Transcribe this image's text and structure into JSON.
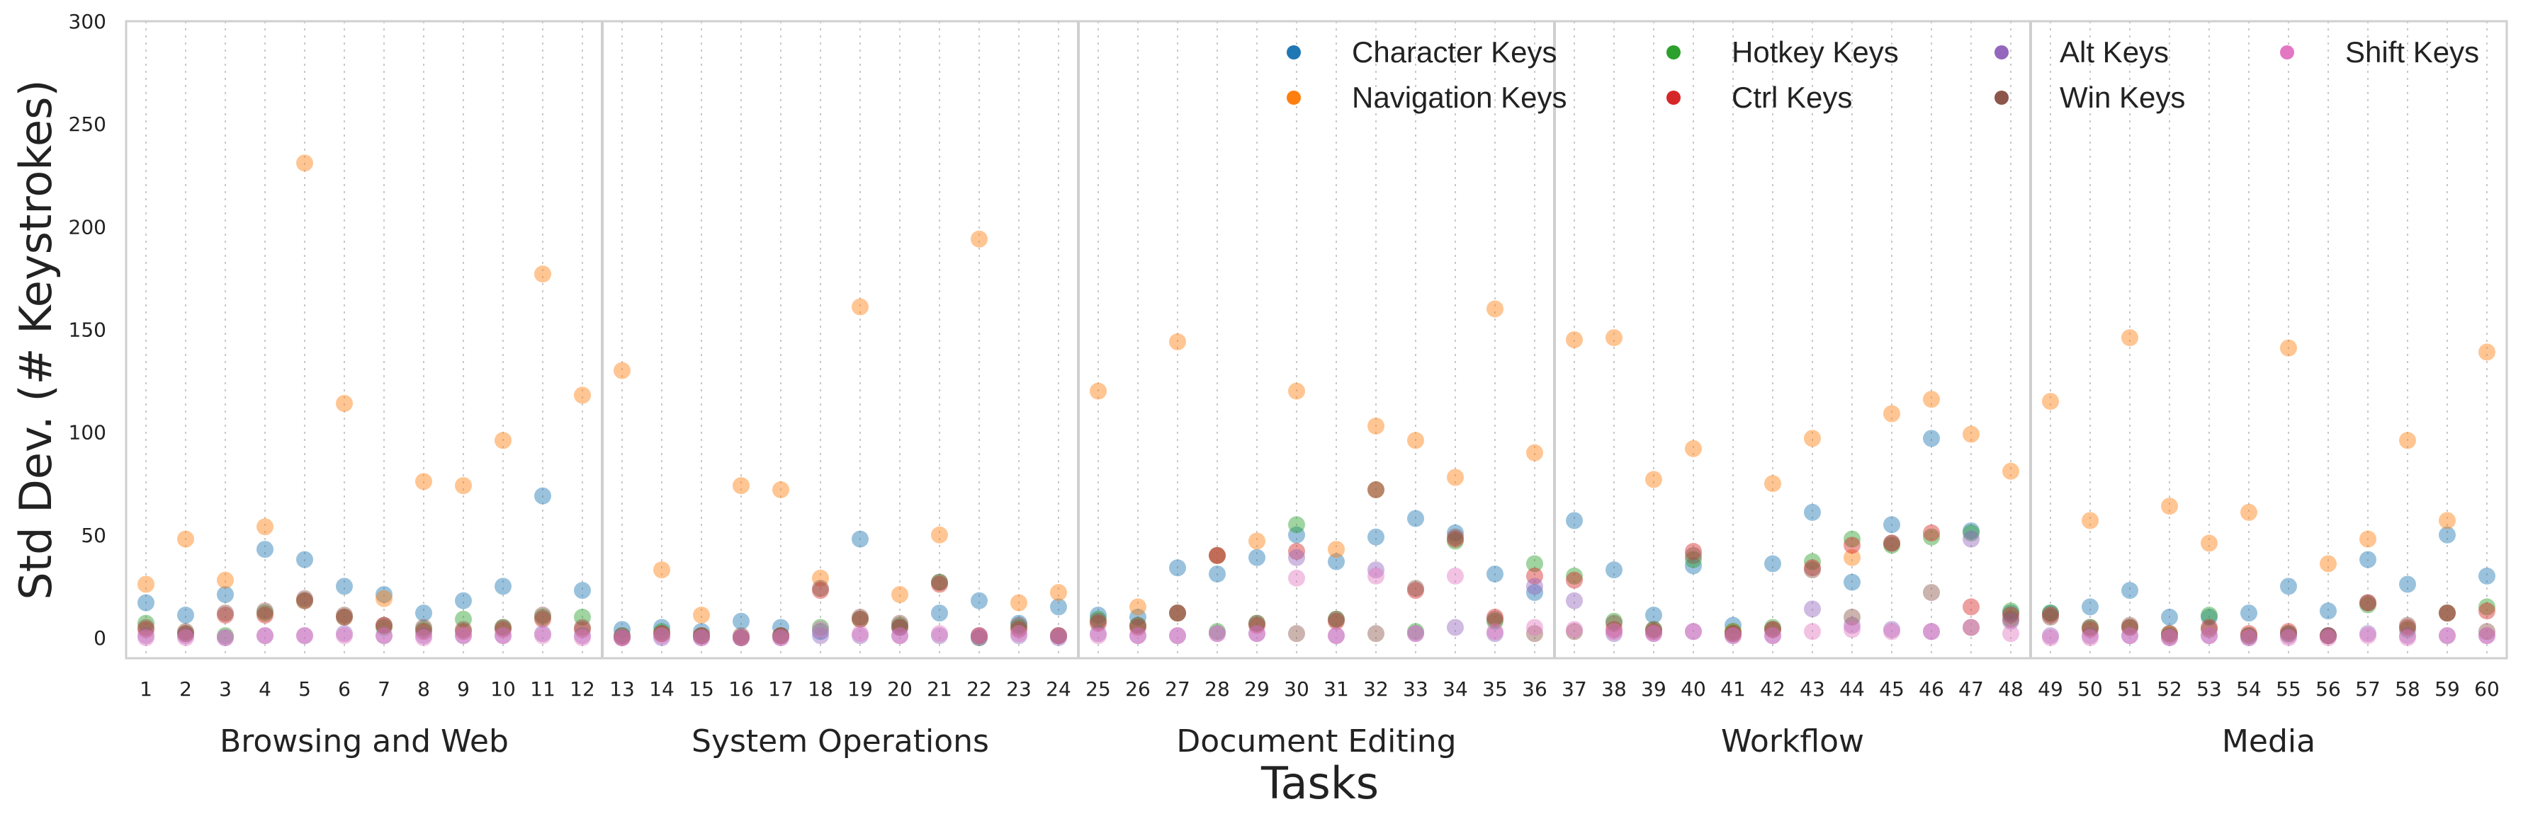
{
  "chart_data": {
    "type": "scatter",
    "title": "",
    "xlabel": "Tasks",
    "ylabel": "Std Dev. (# Keystrokes)",
    "ylim": [
      -10,
      300
    ],
    "yticks": [
      0,
      50,
      100,
      150,
      200,
      250,
      300
    ],
    "x": [
      1,
      2,
      3,
      4,
      5,
      6,
      7,
      8,
      9,
      10,
      11,
      12,
      13,
      14,
      15,
      16,
      17,
      18,
      19,
      20,
      21,
      22,
      23,
      24,
      25,
      26,
      27,
      28,
      29,
      30,
      31,
      32,
      33,
      34,
      35,
      36,
      37,
      38,
      39,
      40,
      41,
      42,
      43,
      44,
      45,
      46,
      47,
      48,
      49,
      50,
      51,
      52,
      53,
      54,
      55,
      56,
      57,
      58,
      59,
      60
    ],
    "x_tick_labels": [
      "1",
      "2",
      "3",
      "4",
      "5",
      "6",
      "7",
      "8",
      "9",
      "10",
      "11",
      "12",
      "13",
      "14",
      "15",
      "16",
      "17",
      "18",
      "19",
      "20",
      "21",
      "22",
      "23",
      "24",
      "25",
      "26",
      "27",
      "28",
      "29",
      "30",
      "31",
      "32",
      "33",
      "34",
      "35",
      "36",
      "37",
      "38",
      "39",
      "40",
      "41",
      "42",
      "43",
      "44",
      "45",
      "46",
      "47",
      "48",
      "49",
      "50",
      "51",
      "52",
      "53",
      "54",
      "55",
      "56",
      "57",
      "58",
      "59",
      "60"
    ],
    "groups": [
      {
        "name": "Browsing and Web",
        "from": 1,
        "to": 12
      },
      {
        "name": "System Operations",
        "from": 13,
        "to": 24
      },
      {
        "name": "Document Editing",
        "from": 25,
        "to": 36
      },
      {
        "name": "Workflow",
        "from": 37,
        "to": 48
      },
      {
        "name": "Media",
        "from": 49,
        "to": 60
      }
    ],
    "grid": "vertical dotted",
    "legend_placement": "top-right",
    "series": [
      {
        "name": "Character Keys",
        "color": "#1f77b4",
        "values": [
          17,
          11,
          21,
          43,
          38,
          25,
          21,
          12,
          18,
          25,
          69,
          23,
          4,
          5,
          3,
          8,
          5,
          3,
          48,
          5,
          12,
          18,
          7,
          15,
          11,
          10,
          34,
          31,
          39,
          50,
          37,
          49,
          58,
          51,
          31,
          22,
          57,
          33,
          11,
          35,
          6,
          36,
          61,
          27,
          55,
          97,
          52,
          12,
          12,
          15,
          23,
          10,
          10,
          12,
          25,
          13,
          38,
          26,
          50,
          30
        ]
      },
      {
        "name": "Navigation Keys",
        "color": "#ff7f0e",
        "values": [
          26,
          48,
          28,
          54,
          231,
          114,
          19,
          76,
          74,
          96,
          177,
          118,
          130,
          33,
          11,
          74,
          72,
          29,
          161,
          21,
          50,
          194,
          17,
          22,
          120,
          15,
          144,
          40,
          47,
          120,
          43,
          103,
          96,
          78,
          160,
          90,
          145,
          146,
          77,
          92,
          3,
          75,
          97,
          39,
          109,
          116,
          99,
          81,
          115,
          57,
          146,
          64,
          46,
          61,
          141,
          36,
          48,
          96,
          57,
          139
        ]
      },
      {
        "name": "Hotkey Keys",
        "color": "#2ca02c",
        "values": [
          7,
          2,
          1,
          12,
          18,
          10,
          5,
          4,
          9,
          5,
          10,
          10,
          1,
          3,
          1,
          0,
          1,
          5,
          9,
          6,
          27,
          0,
          5,
          1,
          9,
          6,
          12,
          3,
          7,
          55,
          9,
          72,
          3,
          47,
          8,
          36,
          30,
          8,
          4,
          38,
          3,
          5,
          37,
          48,
          45,
          49,
          51,
          13,
          12,
          5,
          5,
          2,
          11,
          1,
          2,
          1,
          16,
          4,
          12,
          15
        ]
      },
      {
        "name": "Ctrl Keys",
        "color": "#d62728",
        "values": [
          4,
          2,
          11,
          11,
          18,
          10,
          6,
          3,
          3,
          4,
          9,
          4,
          0,
          2,
          1,
          0,
          1,
          23,
          9,
          5,
          26,
          1,
          4,
          1,
          7,
          5,
          12,
          40,
          6,
          42,
          8,
          72,
          23,
          48,
          10,
          30,
          28,
          4,
          3,
          42,
          2,
          4,
          34,
          45,
          46,
          51,
          15,
          11,
          11,
          4,
          5,
          2,
          5,
          2,
          3,
          1,
          17,
          5,
          12,
          13
        ]
      },
      {
        "name": "Alt Keys",
        "color": "#9467bd",
        "values": [
          1,
          1,
          0,
          1,
          1,
          2,
          1,
          1,
          1,
          1,
          2,
          1,
          0,
          0,
          0,
          0,
          0,
          1,
          1,
          1,
          1,
          0,
          1,
          0,
          2,
          1,
          1,
          2,
          2,
          39,
          1,
          33,
          2,
          5,
          2,
          25,
          18,
          2,
          2,
          3,
          1,
          1,
          14,
          6,
          4,
          3,
          48,
          8,
          1,
          1,
          1,
          0,
          1,
          0,
          1,
          1,
          2,
          1,
          1,
          1
        ]
      },
      {
        "name": "Win Keys",
        "color": "#8c564b",
        "values": [
          5,
          3,
          12,
          13,
          19,
          11,
          6,
          5,
          4,
          5,
          11,
          5,
          1,
          2,
          1,
          1,
          1,
          24,
          10,
          7,
          27,
          1,
          6,
          1,
          8,
          6,
          12,
          40,
          7,
          2,
          9,
          2,
          24,
          49,
          9,
          2,
          3,
          7,
          4,
          40,
          2,
          4,
          33,
          10,
          46,
          22,
          5,
          9,
          10,
          5,
          6,
          1,
          4,
          1,
          2,
          1,
          17,
          6,
          12,
          3
        ]
      },
      {
        "name": "Shift Keys",
        "color": "#e377c2",
        "values": [
          0,
          0,
          0,
          1,
          1,
          1,
          1,
          0,
          1,
          1,
          1,
          0,
          0,
          1,
          0,
          0,
          0,
          4,
          2,
          1,
          2,
          1,
          2,
          1,
          1,
          1,
          1,
          2,
          2,
          29,
          1,
          30,
          2,
          30,
          3,
          5,
          4,
          3,
          2,
          3,
          1,
          1,
          3,
          4,
          3,
          3,
          5,
          2,
          0,
          0,
          1,
          0,
          1,
          0,
          0,
          0,
          1,
          0,
          1,
          1
        ]
      }
    ]
  }
}
